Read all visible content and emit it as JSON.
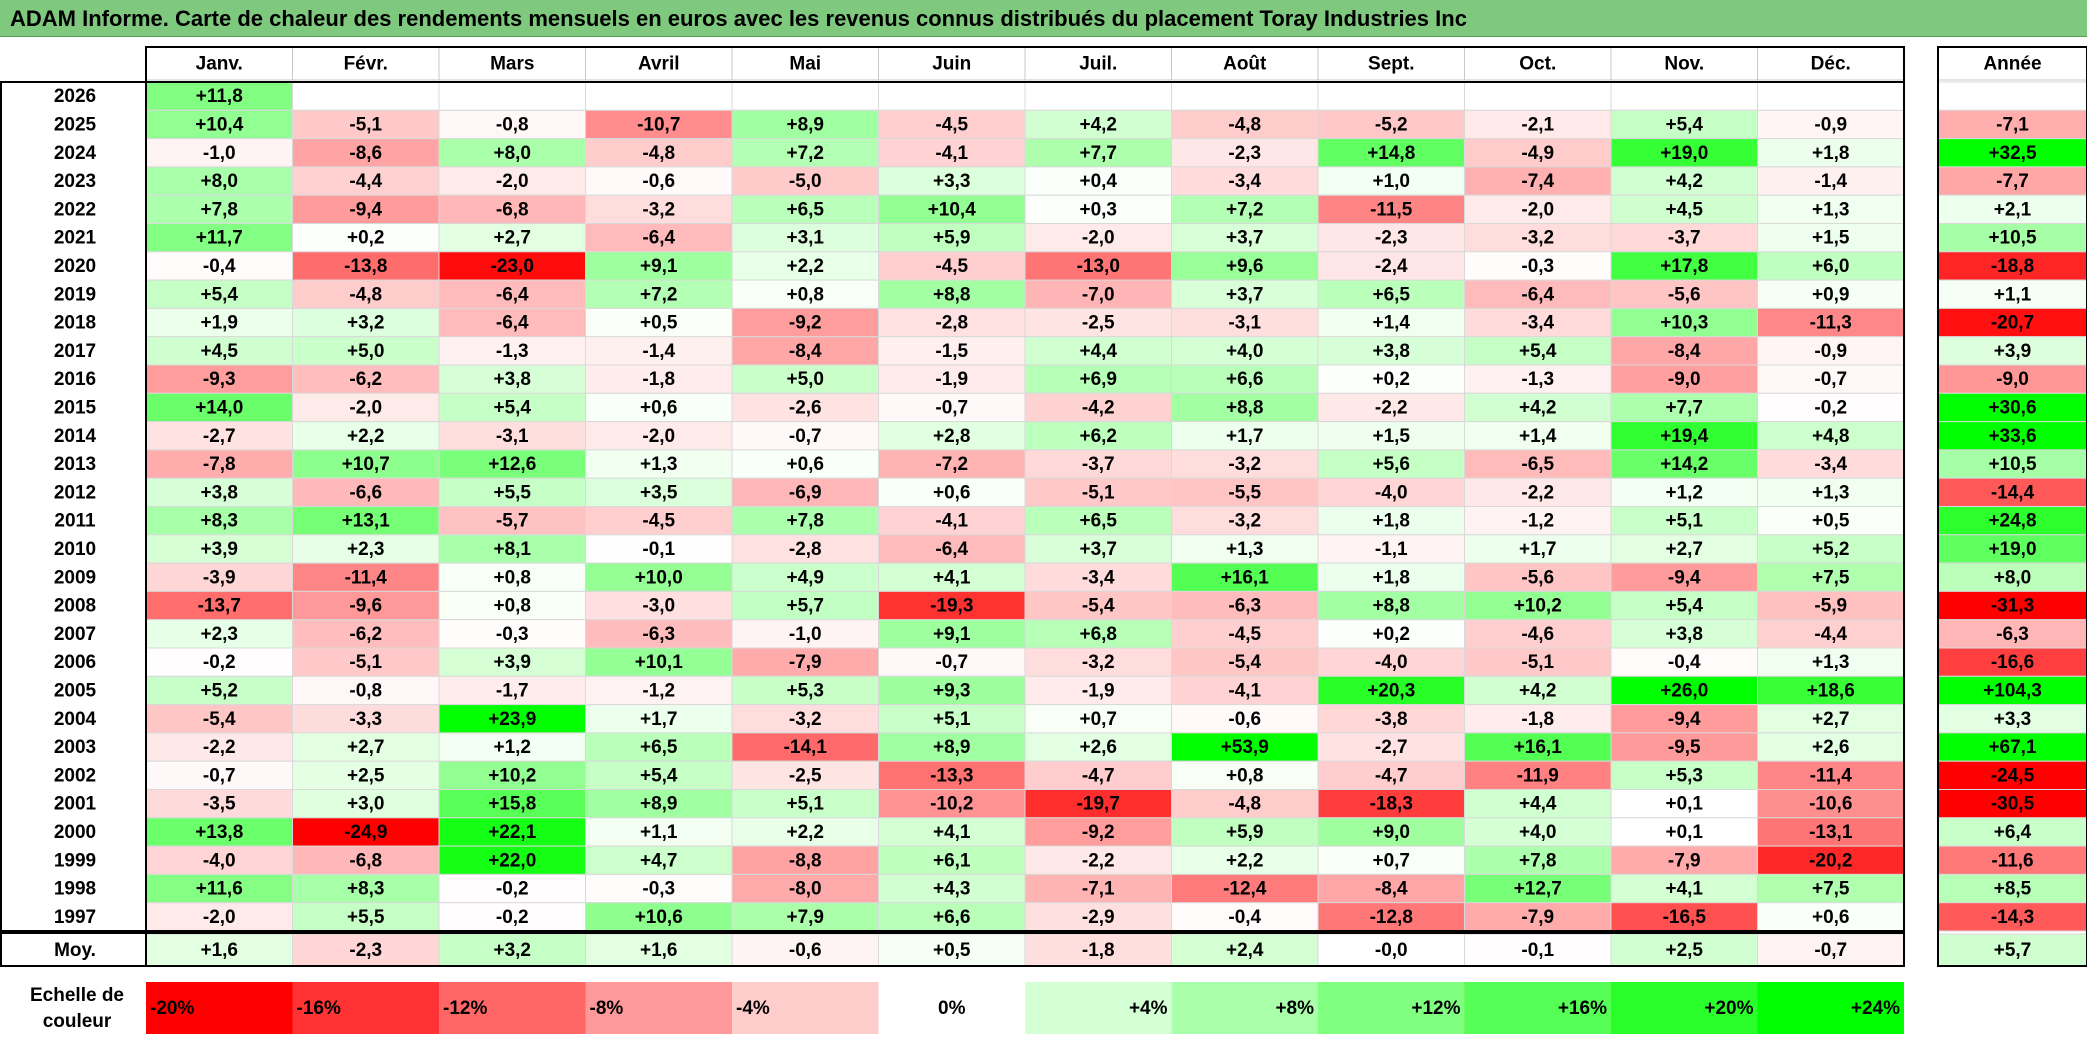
{
  "title": "ADAM Informe. Carte de chaleur des rendements mensuels en euros avec les revenus connus distribués du placement Toray Industries Inc",
  "colors": {
    "title_bg": "#7fc97f",
    "neg_max": "#ff0000",
    "neutral": "#ffffff",
    "pos_max": "#00ff00"
  },
  "chart_data": {
    "type": "heatmap",
    "columns": [
      "Janv.",
      "Févr.",
      "Mars",
      "Avril",
      "Mai",
      "Juin",
      "Juil.",
      "Août",
      "Sept.",
      "Oct.",
      "Nov.",
      "Déc."
    ],
    "year_header": "Année",
    "rows": [
      {
        "year": "2026",
        "months": [
          "+11,8",
          "",
          "",
          "",
          "",
          "",
          "",
          "",
          "",
          "",
          "",
          ""
        ],
        "total": ""
      },
      {
        "year": "2025",
        "months": [
          "+10,4",
          "-5,1",
          "-0,8",
          "-10,7",
          "+8,9",
          "-4,5",
          "+4,2",
          "-4,8",
          "-5,2",
          "-2,1",
          "+5,4",
          "-0,9"
        ],
        "total": "-7,1"
      },
      {
        "year": "2024",
        "months": [
          "-1,0",
          "-8,6",
          "+8,0",
          "-4,8",
          "+7,2",
          "-4,1",
          "+7,7",
          "-2,3",
          "+14,8",
          "-4,9",
          "+19,0",
          "+1,8"
        ],
        "total": "+32,5"
      },
      {
        "year": "2023",
        "months": [
          "+8,0",
          "-4,4",
          "-2,0",
          "-0,6",
          "-5,0",
          "+3,3",
          "+0,4",
          "-3,4",
          "+1,0",
          "-7,4",
          "+4,2",
          "-1,4"
        ],
        "total": "-7,7"
      },
      {
        "year": "2022",
        "months": [
          "+7,8",
          "-9,4",
          "-6,8",
          "-3,2",
          "+6,5",
          "+10,4",
          "+0,3",
          "+7,2",
          "-11,5",
          "-2,0",
          "+4,5",
          "+1,3"
        ],
        "total": "+2,1"
      },
      {
        "year": "2021",
        "months": [
          "+11,7",
          "+0,2",
          "+2,7",
          "-6,4",
          "+3,1",
          "+5,9",
          "-2,0",
          "+3,7",
          "-2,3",
          "-3,2",
          "-3,7",
          "+1,5"
        ],
        "total": "+10,5"
      },
      {
        "year": "2020",
        "months": [
          "-0,4",
          "-13,8",
          "-23,0",
          "+9,1",
          "+2,2",
          "-4,5",
          "-13,0",
          "+9,6",
          "-2,4",
          "-0,3",
          "+17,8",
          "+6,0"
        ],
        "total": "-18,8"
      },
      {
        "year": "2019",
        "months": [
          "+5,4",
          "-4,8",
          "-6,4",
          "+7,2",
          "+0,8",
          "+8,8",
          "-7,0",
          "+3,7",
          "+6,5",
          "-6,4",
          "-5,6",
          "+0,9"
        ],
        "total": "+1,1"
      },
      {
        "year": "2018",
        "months": [
          "+1,9",
          "+3,2",
          "-6,4",
          "+0,5",
          "-9,2",
          "-2,8",
          "-2,5",
          "-3,1",
          "+1,4",
          "-3,4",
          "+10,3",
          "-11,3"
        ],
        "total": "-20,7"
      },
      {
        "year": "2017",
        "months": [
          "+4,5",
          "+5,0",
          "-1,3",
          "-1,4",
          "-8,4",
          "-1,5",
          "+4,4",
          "+4,0",
          "+3,8",
          "+5,4",
          "-8,4",
          "-0,9"
        ],
        "total": "+3,9"
      },
      {
        "year": "2016",
        "months": [
          "-9,3",
          "-6,2",
          "+3,8",
          "-1,8",
          "+5,0",
          "-1,9",
          "+6,9",
          "+6,6",
          "+0,2",
          "-1,3",
          "-9,0",
          "-0,7"
        ],
        "total": "-9,0"
      },
      {
        "year": "2015",
        "months": [
          "+14,0",
          "-2,0",
          "+5,4",
          "+0,6",
          "-2,6",
          "-0,7",
          "-4,2",
          "+8,8",
          "-2,2",
          "+4,2",
          "+7,7",
          "-0,2"
        ],
        "total": "+30,6"
      },
      {
        "year": "2014",
        "months": [
          "-2,7",
          "+2,2",
          "-3,1",
          "-2,0",
          "-0,7",
          "+2,8",
          "+6,2",
          "+1,7",
          "+1,5",
          "+1,4",
          "+19,4",
          "+4,8"
        ],
        "total": "+33,6"
      },
      {
        "year": "2013",
        "months": [
          "-7,8",
          "+10,7",
          "+12,6",
          "+1,3",
          "+0,6",
          "-7,2",
          "-3,7",
          "-3,2",
          "+5,6",
          "-6,5",
          "+14,2",
          "-3,4"
        ],
        "total": "+10,5"
      },
      {
        "year": "2012",
        "months": [
          "+3,8",
          "-6,6",
          "+5,5",
          "+3,5",
          "-6,9",
          "+0,6",
          "-5,1",
          "-5,5",
          "-4,0",
          "-2,2",
          "+1,2",
          "+1,3"
        ],
        "total": "-14,4"
      },
      {
        "year": "2011",
        "months": [
          "+8,3",
          "+13,1",
          "-5,7",
          "-4,5",
          "+7,8",
          "-4,1",
          "+6,5",
          "-3,2",
          "+1,8",
          "-1,2",
          "+5,1",
          "+0,5"
        ],
        "total": "+24,8"
      },
      {
        "year": "2010",
        "months": [
          "+3,9",
          "+2,3",
          "+8,1",
          "-0,1",
          "-2,8",
          "-6,4",
          "+3,7",
          "+1,3",
          "-1,1",
          "+1,7",
          "+2,7",
          "+5,2"
        ],
        "total": "+19,0"
      },
      {
        "year": "2009",
        "months": [
          "-3,9",
          "-11,4",
          "+0,8",
          "+10,0",
          "+4,9",
          "+4,1",
          "-3,4",
          "+16,1",
          "+1,8",
          "-5,6",
          "-9,4",
          "+7,5"
        ],
        "total": "+8,0"
      },
      {
        "year": "2008",
        "months": [
          "-13,7",
          "-9,6",
          "+0,8",
          "-3,0",
          "+5,7",
          "-19,3",
          "-5,4",
          "-6,3",
          "+8,8",
          "+10,2",
          "+5,4",
          "-5,9"
        ],
        "total": "-31,3"
      },
      {
        "year": "2007",
        "months": [
          "+2,3",
          "-6,2",
          "-0,3",
          "-6,3",
          "-1,0",
          "+9,1",
          "+6,8",
          "-4,5",
          "+0,2",
          "-4,6",
          "+3,8",
          "-4,4"
        ],
        "total": "-6,3"
      },
      {
        "year": "2006",
        "months": [
          "-0,2",
          "-5,1",
          "+3,9",
          "+10,1",
          "-7,9",
          "-0,7",
          "-3,2",
          "-5,4",
          "-4,0",
          "-5,1",
          "-0,4",
          "+1,3"
        ],
        "total": "-16,6"
      },
      {
        "year": "2005",
        "months": [
          "+5,2",
          "-0,8",
          "-1,7",
          "-1,2",
          "+5,3",
          "+9,3",
          "-1,9",
          "-4,1",
          "+20,3",
          "+4,2",
          "+26,0",
          "+18,6"
        ],
        "total": "+104,3"
      },
      {
        "year": "2004",
        "months": [
          "-5,4",
          "-3,3",
          "+23,9",
          "+1,7",
          "-3,2",
          "+5,1",
          "+0,7",
          "-0,6",
          "-3,8",
          "-1,8",
          "-9,4",
          "+2,7"
        ],
        "total": "+3,3"
      },
      {
        "year": "2003",
        "months": [
          "-2,2",
          "+2,7",
          "+1,2",
          "+6,5",
          "-14,1",
          "+8,9",
          "+2,6",
          "+53,9",
          "-2,7",
          "+16,1",
          "-9,5",
          "+2,6"
        ],
        "total": "+67,1"
      },
      {
        "year": "2002",
        "months": [
          "-0,7",
          "+2,5",
          "+10,2",
          "+5,4",
          "-2,5",
          "-13,3",
          "-4,7",
          "+0,8",
          "-4,7",
          "-11,9",
          "+5,3",
          "-11,4"
        ],
        "total": "-24,5"
      },
      {
        "year": "2001",
        "months": [
          "-3,5",
          "+3,0",
          "+15,8",
          "+8,9",
          "+5,1",
          "-10,2",
          "-19,7",
          "-4,8",
          "-18,3",
          "+4,4",
          "+0,1",
          "-10,6"
        ],
        "total": "-30,5"
      },
      {
        "year": "2000",
        "months": [
          "+13,8",
          "-24,9",
          "+22,1",
          "+1,1",
          "+2,2",
          "+4,1",
          "-9,2",
          "+5,9",
          "+9,0",
          "+4,0",
          "+0,1",
          "-13,1"
        ],
        "total": "+6,4"
      },
      {
        "year": "1999",
        "months": [
          "-4,0",
          "-6,8",
          "+22,0",
          "+4,7",
          "-8,8",
          "+6,1",
          "-2,2",
          "+2,2",
          "+0,7",
          "+7,8",
          "-7,9",
          "-20,2"
        ],
        "total": "-11,6"
      },
      {
        "year": "1998",
        "months": [
          "+11,6",
          "+8,3",
          "-0,2",
          "-0,3",
          "-8,0",
          "+4,3",
          "-7,1",
          "-12,4",
          "-8,4",
          "+12,7",
          "+4,1",
          "+7,5"
        ],
        "total": "+8,5"
      },
      {
        "year": "1997",
        "months": [
          "-2,0",
          "+5,5",
          "-0,2",
          "+10,6",
          "+7,9",
          "+6,6",
          "-2,9",
          "-0,4",
          "-12,8",
          "-7,9",
          "-16,5",
          "+0,6"
        ],
        "total": "-14,3"
      }
    ],
    "average": {
      "label": "Moy.",
      "months": [
        "+1,6",
        "-2,3",
        "+3,2",
        "+1,6",
        "-0,6",
        "+0,5",
        "-1,8",
        "+2,4",
        "-0,0",
        "-0,1",
        "+2,5",
        "-0,7"
      ],
      "total": "+5,7"
    },
    "color_scale": {
      "label_line1": "Echelle de",
      "label_line2": "couleur",
      "stops": [
        "-20%",
        "-16%",
        "-12%",
        "-8%",
        "-4%",
        "0%",
        "+4%",
        "+8%",
        "+12%",
        "+16%",
        "+20%",
        "+24%"
      ]
    }
  }
}
